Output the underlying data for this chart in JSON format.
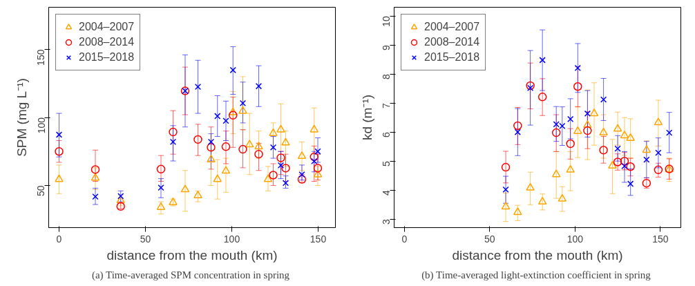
{
  "chart_data": [
    {
      "type": "scatter",
      "ylabel": "SPM (mg L⁻¹)",
      "xlabel": "distance from the mouth (km)",
      "xlim": [
        -6,
        160
      ],
      "xticks": [
        0,
        50,
        100,
        150
      ],
      "ylim": [
        19,
        181
      ],
      "yticks": [
        50,
        100,
        150
      ],
      "grid": false,
      "legend": "top left",
      "annotations": [
        "(a)  Time-averaged SPM concentration in spring"
      ],
      "series": [
        {
          "name": "2004–2007",
          "color": "#ffa500",
          "marker": "triangle",
          "x": [
            0,
            21,
            35.7,
            59,
            66,
            73,
            80.4,
            88,
            91.7,
            96.6,
            100.7,
            106.4,
            110.3,
            115.6,
            121,
            124,
            128.4,
            131.2,
            140.6,
            147.7,
            149.8
          ],
          "values": [
            54.5,
            55.5,
            39,
            34,
            37.5,
            47,
            42.6,
            69,
            54.5,
            60.7,
            103.7,
            104.7,
            80,
            78.5,
            54.5,
            88.3,
            91,
            81.4,
            71.5,
            91,
            58
          ],
          "errors": [
            [
              44,
              65
            ],
            [
              47,
              63
            ],
            [
              35,
              43
            ],
            [
              29,
              38
            ],
            [
              35,
              40
            ],
            [
              31,
              61
            ],
            [
              38,
              46
            ],
            [
              50,
              76
            ],
            [
              40,
              69
            ],
            [
              45,
              70
            ],
            [
              88,
              119
            ],
            [
              91,
              130
            ],
            [
              58,
              103
            ],
            [
              70,
              90
            ],
            [
              46,
              64
            ],
            [
              77,
              96
            ],
            [
              70,
              110
            ],
            [
              64,
              90
            ],
            [
              61,
              82
            ],
            [
              73,
              107
            ],
            [
              50,
              64
            ]
          ]
        },
        {
          "name": "2008–2014",
          "color": "#ff0000",
          "marker": "circle",
          "x": [
            0,
            21,
            35.7,
            59,
            66,
            73,
            80.4,
            88,
            96.6,
            100.7,
            106.4,
            115.6,
            124,
            128.4,
            131.2,
            140.6,
            147.7,
            149.8
          ],
          "values": [
            75,
            61.7,
            34.6,
            62,
            89.3,
            119.5,
            83.8,
            78,
            78.5,
            101.6,
            76.6,
            73,
            57.6,
            70.3,
            62.7,
            54.5,
            71,
            62.7
          ],
          "errors": [
            [
              67,
              83
            ],
            [
              53,
              76
            ],
            [
              33,
              37
            ],
            [
              53,
              72
            ],
            [
              73,
              105
            ],
            [
              102,
              137
            ],
            [
              72,
              95
            ],
            [
              62,
              93
            ],
            [
              66,
              90
            ],
            [
              78,
              115
            ],
            [
              63,
              91
            ],
            [
              61,
              81
            ],
            [
              50,
              66
            ],
            [
              58,
              75
            ],
            [
              53,
              73
            ],
            [
              52,
              58
            ],
            [
              53,
              79
            ],
            [
              54,
              73
            ]
          ]
        },
        {
          "name": "2015–2018",
          "color": "#0000ff",
          "marker": "cross",
          "x": [
            0,
            21,
            35.7,
            59,
            66,
            73,
            80.4,
            88,
            91.7,
            96.6,
            100.7,
            106.4,
            115.6,
            124,
            128.4,
            131.2,
            140.6,
            147.7,
            149.8
          ],
          "values": [
            87.3,
            41.8,
            42.2,
            48.4,
            82,
            119.5,
            122.5,
            82,
            101,
            97.5,
            134.8,
            110.5,
            123,
            78,
            64.8,
            51.8,
            58,
            67.8,
            75
          ],
          "errors": [
            [
              71,
              103
            ],
            [
              36,
              48
            ],
            [
              38,
              46
            ],
            [
              41,
              55
            ],
            [
              68,
              94
            ],
            [
              93,
              146
            ],
            [
              103,
              142
            ],
            [
              68,
              88
            ],
            [
              86,
              116
            ],
            [
              83,
              112
            ],
            [
              117,
              152
            ],
            [
              96,
              126
            ],
            [
              108,
              138
            ],
            [
              70,
              86
            ],
            [
              55,
              75
            ],
            [
              48,
              57
            ],
            [
              54,
              65
            ],
            [
              60,
              75
            ],
            [
              67,
              85
            ]
          ]
        }
      ]
    },
    {
      "type": "scatter",
      "ylabel": "kd (m⁻¹)",
      "xlabel": "distance from the mouth (km)",
      "xlim": [
        -6,
        162
      ],
      "xticks": [
        0,
        50,
        100,
        150
      ],
      "ylim": [
        2.71,
        10.3
      ],
      "yticks": [
        3,
        4,
        5,
        6,
        7,
        8,
        9,
        10
      ],
      "grid": false,
      "legend": "top left",
      "annotations": [
        "(b)  Time-averaged light-extinction coefficient in spring"
      ],
      "series": [
        {
          "name": "2004–2007",
          "color": "#ffa500",
          "marker": "triangle",
          "x": [
            59.4,
            66.4,
            73.8,
            80.9,
            89,
            92.5,
            97.3,
            101.6,
            107.3,
            111.2,
            116.7,
            121.9,
            125,
            129,
            132.5,
            141.9,
            148.8,
            155.2
          ],
          "values": [
            3.43,
            3.24,
            4.08,
            3.6,
            4.54,
            3.7,
            4.7,
            6.03,
            6.24,
            6.64,
            5.98,
            4.84,
            6.11,
            5.88,
            5.79,
            5.38,
            6.33,
            4.71
          ],
          "errors": [
            [
              2.92,
              3.9
            ],
            [
              2.95,
              3.48
            ],
            [
              3.5,
              4.62
            ],
            [
              3.32,
              3.87
            ],
            [
              3.72,
              5.33
            ],
            [
              3.27,
              4.12
            ],
            [
              3.98,
              5.33
            ],
            [
              5.12,
              6.87
            ],
            [
              5.05,
              7.45
            ],
            [
              5.55,
              7.7
            ],
            [
              5.1,
              6.6
            ],
            [
              3.88,
              5.75
            ],
            [
              5.55,
              6.69
            ],
            [
              5.2,
              6.5
            ],
            [
              5.1,
              6.46
            ],
            [
              4.98,
              5.7
            ],
            [
              5.52,
              7.1
            ],
            [
              4.3,
              5.1
            ]
          ]
        },
        {
          "name": "2008–2014",
          "color": "#ff0000",
          "marker": "circle",
          "x": [
            59.4,
            66.4,
            73.8,
            80.9,
            89,
            97.3,
            101.6,
            107.3,
            116.7,
            125,
            129,
            132.5,
            141.9,
            148.8,
            155.2
          ],
          "values": [
            4.79,
            6.22,
            7.6,
            7.21,
            5.98,
            5.6,
            7.57,
            6.05,
            5.38,
            4.97,
            5.0,
            4.81,
            4.24,
            4.7,
            4.73
          ],
          "errors": [
            [
              4.25,
              5.34
            ],
            [
              5.57,
              6.85
            ],
            [
              6.8,
              8.38
            ],
            [
              6.57,
              7.84
            ],
            [
              5.33,
              6.6
            ],
            [
              5.07,
              6.12
            ],
            [
              6.87,
              8.25
            ],
            [
              5.43,
              6.7
            ],
            [
              4.93,
              5.85
            ],
            [
              4.69,
              5.25
            ],
            [
              4.7,
              5.3
            ],
            [
              4.49,
              5.1
            ],
            [
              4.07,
              4.42
            ],
            [
              4.45,
              4.93
            ],
            [
              4.38,
              5.08
            ]
          ]
        },
        {
          "name": "2015–2018",
          "color": "#0000ff",
          "marker": "cross",
          "x": [
            59.4,
            66.4,
            73.8,
            80.9,
            89,
            92.5,
            97.3,
            101.6,
            107.3,
            116.7,
            125,
            129,
            132.5,
            141.9,
            148.8,
            155.2
          ],
          "values": [
            4.02,
            6.0,
            7.52,
            8.48,
            6.27,
            6.21,
            6.45,
            8.21,
            6.64,
            7.12,
            5.43,
            4.83,
            4.22,
            5.05,
            5.29,
            5.98
          ],
          "errors": [
            [
              3.55,
              4.48
            ],
            [
              5.19,
              6.81
            ],
            [
              6.24,
              8.81
            ],
            [
              7.43,
              9.52
            ],
            [
              5.68,
              6.88
            ],
            [
              5.54,
              6.87
            ],
            [
              5.77,
              7.15
            ],
            [
              7.37,
              9.05
            ],
            [
              5.83,
              7.43
            ],
            [
              6.4,
              7.85
            ],
            [
              5.0,
              5.88
            ],
            [
              4.27,
              5.33
            ],
            [
              3.82,
              4.73
            ],
            [
              4.43,
              5.68
            ],
            [
              4.77,
              5.8
            ],
            [
              5.29,
              6.68
            ]
          ]
        }
      ]
    }
  ]
}
